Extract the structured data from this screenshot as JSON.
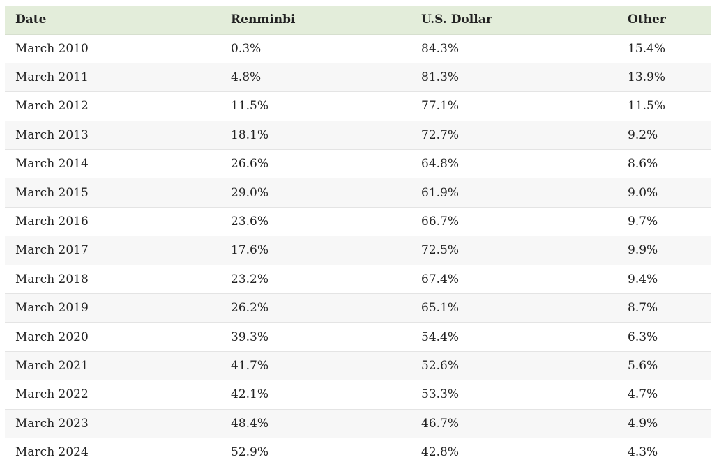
{
  "table": {
    "headers": [
      "Date",
      "Renminbi",
      "U.S. Dollar",
      "Other"
    ],
    "rows": [
      [
        "March 2010",
        "0.3%",
        "84.3%",
        "15.4%"
      ],
      [
        "March 2011",
        "4.8%",
        "81.3%",
        "13.9%"
      ],
      [
        "March 2012",
        "11.5%",
        "77.1%",
        "11.5%"
      ],
      [
        "March 2013",
        "18.1%",
        "72.7%",
        "9.2%"
      ],
      [
        "March 2014",
        "26.6%",
        "64.8%",
        "8.6%"
      ],
      [
        "March 2015",
        "29.0%",
        "61.9%",
        "9.0%"
      ],
      [
        "March 2016",
        "23.6%",
        "66.7%",
        "9.7%"
      ],
      [
        "March 2017",
        "17.6%",
        "72.5%",
        "9.9%"
      ],
      [
        "March 2018",
        "23.2%",
        "67.4%",
        "9.4%"
      ],
      [
        "March 2019",
        "26.2%",
        "65.1%",
        "8.7%"
      ],
      [
        "March 2020",
        "39.3%",
        "54.4%",
        "6.3%"
      ],
      [
        "March 2021",
        "41.7%",
        "52.6%",
        "5.6%"
      ],
      [
        "March 2022",
        "42.1%",
        "53.3%",
        "4.7%"
      ],
      [
        "March 2023",
        "48.4%",
        "46.7%",
        "4.9%"
      ],
      [
        "March 2024",
        "52.9%",
        "42.8%",
        "4.3%"
      ]
    ]
  },
  "colors": {
    "header_bg": "#e3edda",
    "stripe_bg": "#f7f7f7",
    "row_bg": "#ffffff",
    "text": "#222222",
    "row_border": "#e4e4e4"
  }
}
